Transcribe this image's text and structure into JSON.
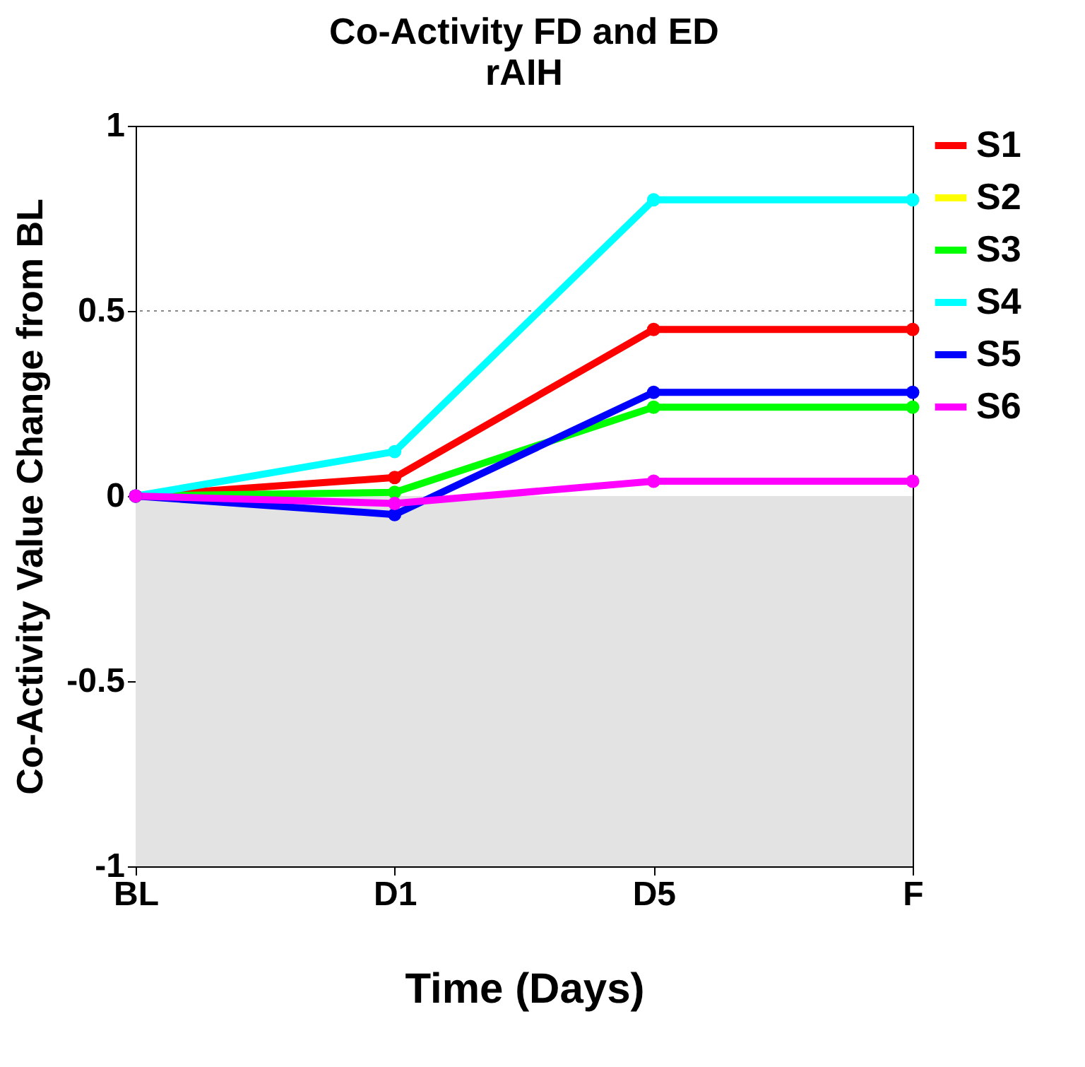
{
  "chart_data": {
    "type": "line",
    "title": "Co-Activity FD and ED",
    "subtitle": "rAIH",
    "xlabel": "Time (Days)",
    "ylabel": "Co-Activity Value Change from BL",
    "categories": [
      "BL",
      "D1",
      "D5",
      "F"
    ],
    "series": [
      {
        "name": "S1",
        "color": "#ff0000",
        "values": [
          0,
          0.05,
          0.45,
          0.45
        ]
      },
      {
        "name": "S2",
        "color": "#ffff00",
        "values": [
          null,
          null,
          null,
          null
        ]
      },
      {
        "name": "S3",
        "color": "#00ff00",
        "values": [
          0,
          0.01,
          0.24,
          0.24
        ]
      },
      {
        "name": "S4",
        "color": "#00ffff",
        "values": [
          0,
          0.12,
          0.8,
          0.8
        ]
      },
      {
        "name": "S5",
        "color": "#0000ff",
        "values": [
          0,
          -0.05,
          0.28,
          0.28
        ]
      },
      {
        "name": "S6",
        "color": "#ff00ff",
        "values": [
          0,
          -0.02,
          0.04,
          0.04
        ]
      }
    ],
    "ylim": [
      -1,
      1
    ],
    "yticks": [
      -1,
      -0.5,
      0,
      0.5,
      1
    ],
    "bands": [
      {
        "axis": "y",
        "from": -1,
        "to": 0,
        "color": "#e3e3e3"
      }
    ],
    "ref_lines": [
      {
        "axis": "y",
        "value": 0.5,
        "line_style": "dotted",
        "color": "#888888"
      }
    ],
    "legend": "right",
    "marker": "circle",
    "line_style": "solid",
    "grid": false
  }
}
